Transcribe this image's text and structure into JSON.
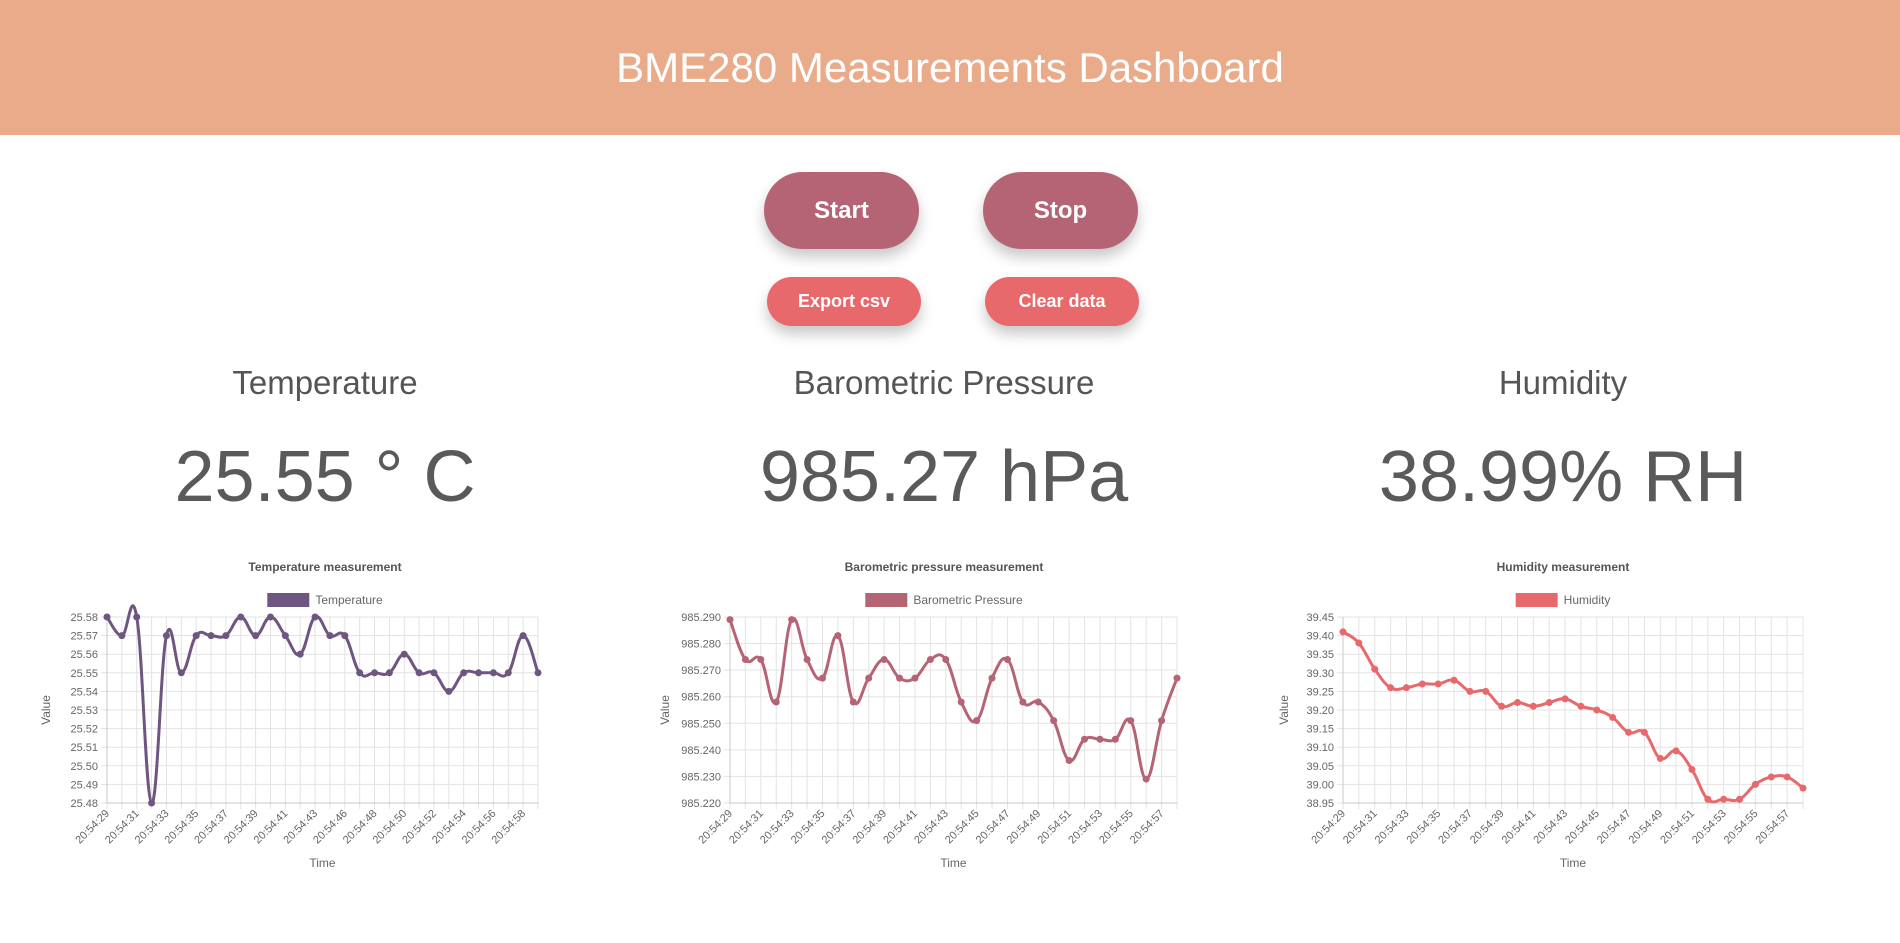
{
  "header": {
    "title": "BME280 Measurements Dashboard"
  },
  "controls": {
    "start_label": "Start",
    "stop_label": "Stop",
    "export_label": "Export csv",
    "clear_label": "Clear data"
  },
  "panels": [
    {
      "title": "Temperature",
      "value": "25.55 ° C"
    },
    {
      "title": "Barometric Pressure",
      "value": "985.27 hPa"
    },
    {
      "title": "Humidity",
      "value": "38.99% RH"
    }
  ],
  "colors": {
    "header": "#eaab8a",
    "primary_button": "#b56475",
    "secondary_button": "#e8696c",
    "temperature": "#6f5680",
    "pressure": "#b56475",
    "humidity": "#e8696c"
  },
  "chart_data": [
    {
      "type": "line",
      "title": "Temperature measurement",
      "xlabel": "Time",
      "ylabel": "Value",
      "color": "#6f5680",
      "legend": "top",
      "grid": true,
      "ylim": [
        25.48,
        25.58
      ],
      "yticks": [
        "25.58",
        "25.57",
        "25.56",
        "25.55",
        "25.54",
        "25.53",
        "25.52",
        "25.51",
        "25.50",
        "25.49",
        "25.48"
      ],
      "xticks": [
        "20:54:29",
        "20:54:31",
        "20:54:33",
        "20:54:35",
        "20:54:37",
        "20:54:39",
        "20:54:41",
        "20:54:43",
        "20:54:46",
        "20:54:48",
        "20:54:50",
        "20:54:52",
        "20:54:54",
        "20:54:56",
        "20:54:58"
      ],
      "series": [
        {
          "name": "Temperature",
          "values": [
            25.58,
            25.57,
            25.58,
            25.48,
            25.57,
            25.55,
            25.57,
            25.57,
            25.57,
            25.58,
            25.57,
            25.58,
            25.57,
            25.56,
            25.58,
            25.57,
            25.57,
            25.55,
            25.55,
            25.55,
            25.56,
            25.55,
            25.55,
            25.54,
            25.55,
            25.55,
            25.55,
            25.55,
            25.57,
            25.55
          ]
        }
      ]
    },
    {
      "type": "line",
      "title": "Barometric pressure measurement",
      "xlabel": "Time",
      "ylabel": "Value",
      "color": "#b56475",
      "legend": "top",
      "grid": true,
      "ylim": [
        985.22,
        985.29
      ],
      "yticks": [
        "985.290",
        "985.280",
        "985.270",
        "985.260",
        "985.250",
        "985.240",
        "985.230",
        "985.220"
      ],
      "xticks": [
        "20:54:29",
        "20:54:31",
        "20:54:33",
        "20:54:35",
        "20:54:37",
        "20:54:39",
        "20:54:41",
        "20:54:43",
        "20:54:45",
        "20:54:47",
        "20:54:49",
        "20:54:51",
        "20:54:53",
        "20:54:55",
        "20:54:57"
      ],
      "series": [
        {
          "name": "Barometric Pressure",
          "values": [
            985.289,
            985.274,
            985.274,
            985.258,
            985.289,
            985.274,
            985.267,
            985.283,
            985.258,
            985.267,
            985.274,
            985.267,
            985.267,
            985.274,
            985.274,
            985.258,
            985.251,
            985.267,
            985.274,
            985.258,
            985.258,
            985.251,
            985.236,
            985.244,
            985.244,
            985.244,
            985.251,
            985.229,
            985.251,
            985.267
          ]
        }
      ]
    },
    {
      "type": "line",
      "title": "Humidity measurement",
      "xlabel": "Time",
      "ylabel": "Value",
      "color": "#e8696c",
      "legend": "top",
      "grid": true,
      "ylim": [
        38.95,
        39.45
      ],
      "yticks": [
        "39.45",
        "39.40",
        "39.35",
        "39.30",
        "39.25",
        "39.20",
        "39.15",
        "39.10",
        "39.05",
        "39.00",
        "38.95"
      ],
      "xticks": [
        "20:54:29",
        "20:54:31",
        "20:54:33",
        "20:54:35",
        "20:54:37",
        "20:54:39",
        "20:54:41",
        "20:54:43",
        "20:54:45",
        "20:54:47",
        "20:54:49",
        "20:54:51",
        "20:54:53",
        "20:54:55",
        "20:54:57"
      ],
      "series": [
        {
          "name": "Humidity",
          "values": [
            39.41,
            39.38,
            39.31,
            39.26,
            39.26,
            39.27,
            39.27,
            39.28,
            39.25,
            39.25,
            39.21,
            39.22,
            39.21,
            39.22,
            39.23,
            39.21,
            39.2,
            39.18,
            39.14,
            39.14,
            39.07,
            39.09,
            39.04,
            38.96,
            38.96,
            38.96,
            39.0,
            39.02,
            39.02,
            38.99
          ]
        }
      ]
    }
  ]
}
